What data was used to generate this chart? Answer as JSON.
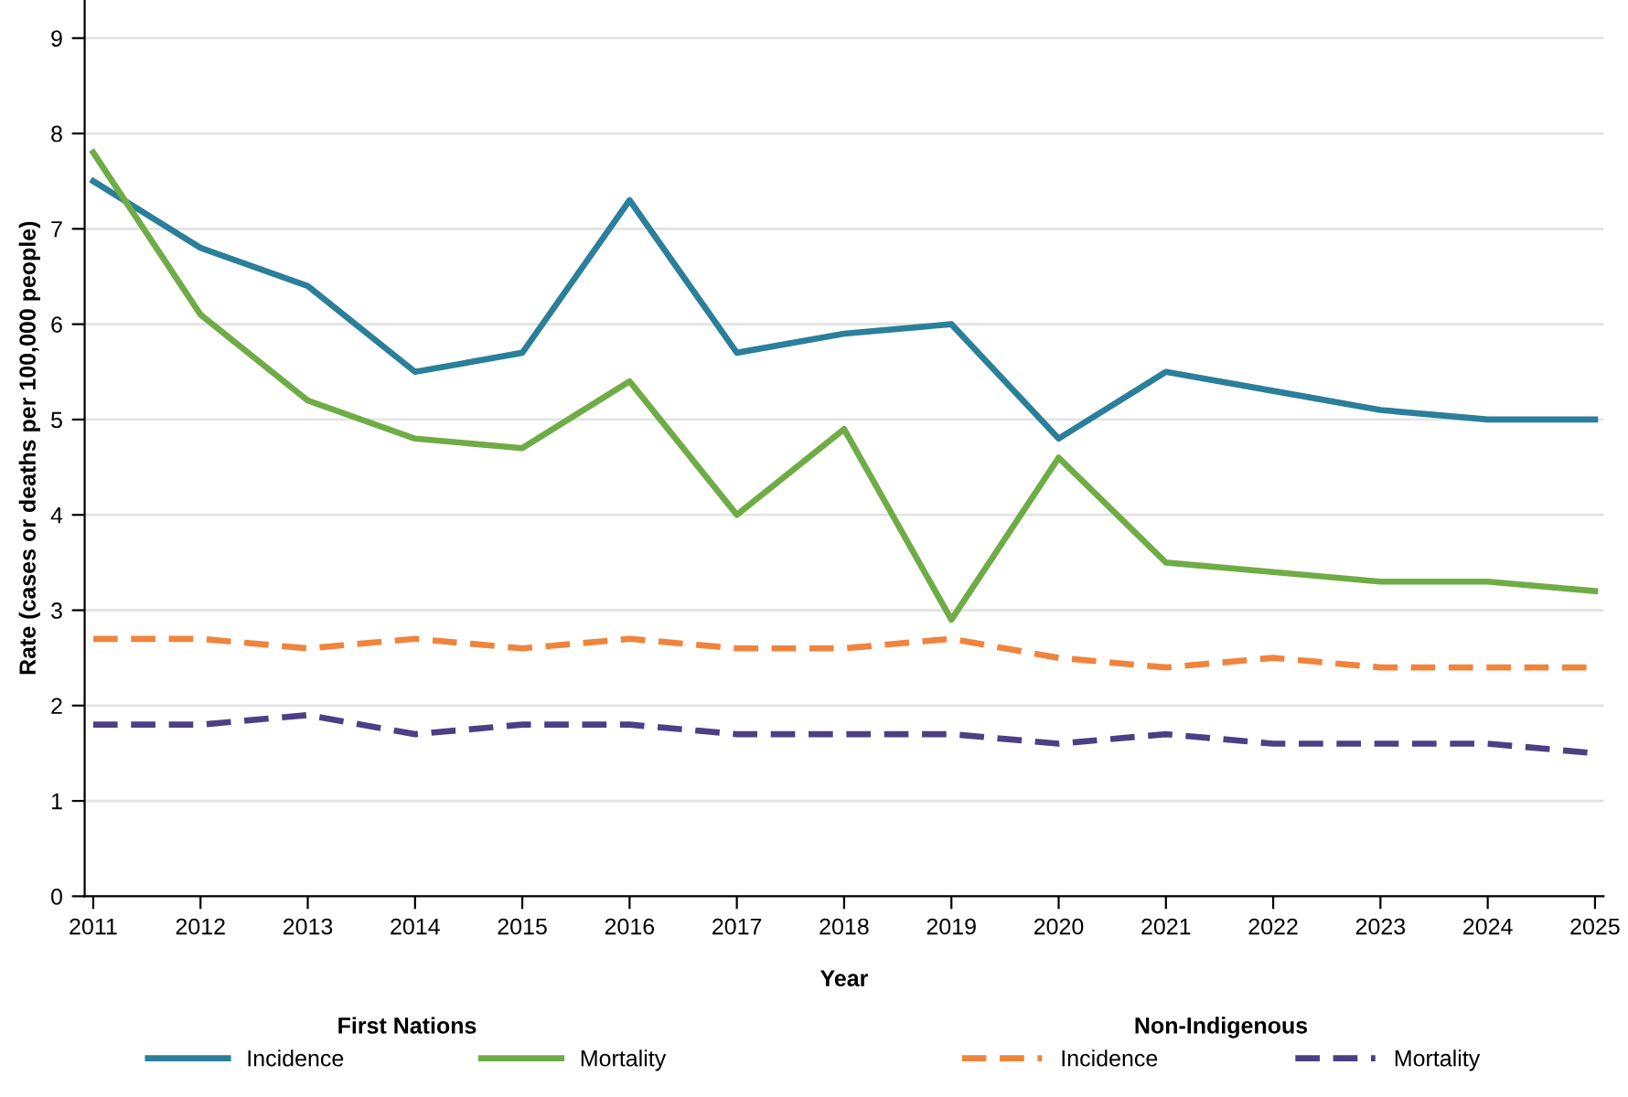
{
  "chart_data": {
    "type": "line",
    "xlabel": "Year",
    "ylabel": "Rate (cases or deaths per 100,000 people)",
    "categories": [
      "2011",
      "2012",
      "2013",
      "2014",
      "2015",
      "2016",
      "2017",
      "2018",
      "2019",
      "2020",
      "2021",
      "2022",
      "2023",
      "2024",
      "2025"
    ],
    "series": [
      {
        "name": "Incidence",
        "color": "#2a7f9a",
        "line_style": "solid",
        "values": [
          7.5,
          6.8,
          6.4,
          5.5,
          5.7,
          7.3,
          5.7,
          5.9,
          6.0,
          4.8,
          5.5,
          5.3,
          5.1,
          5.0,
          5.0
        ]
      },
      {
        "name": "Mortality",
        "color": "#6fac46",
        "line_style": "solid",
        "values": [
          7.8,
          6.1,
          5.2,
          4.8,
          4.7,
          5.4,
          4.0,
          4.9,
          2.9,
          4.6,
          3.5,
          3.4,
          3.3,
          3.3,
          3.2
        ]
      },
      {
        "name": "Incidence",
        "color": "#f0843c",
        "line_style": "dashed",
        "values": [
          2.7,
          2.7,
          2.6,
          2.7,
          2.6,
          2.7,
          2.6,
          2.6,
          2.7,
          2.5,
          2.4,
          2.5,
          2.4,
          2.4,
          2.4
        ]
      },
      {
        "name": "Mortality",
        "color": "#4d3f85",
        "line_style": "dashed",
        "values": [
          1.8,
          1.8,
          1.9,
          1.7,
          1.8,
          1.8,
          1.7,
          1.7,
          1.7,
          1.6,
          1.7,
          1.6,
          1.6,
          1.6,
          1.5
        ]
      }
    ],
    "legend_title": [
      "First Nations",
      "Non-Indigenous"
    ],
    "ylim": [
      0,
      9.4
    ],
    "yticks": [
      0,
      1,
      2,
      3,
      4,
      5,
      6,
      7,
      8,
      9
    ],
    "grid": "y",
    "legend": "bottom",
    "marker": "none"
  }
}
